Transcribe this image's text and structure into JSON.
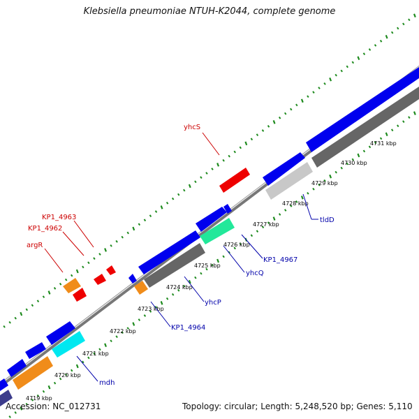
{
  "title": "Klebsiella pneumoniae NTUH-K2044, complete genome",
  "accession_text": "Accession: NC_012731",
  "summary_text": "Topology: circular; Length: 5,248,520 bp; Genes: 5,110",
  "colors": {
    "background": "#ffffff",
    "backbone": "#777777",
    "tick_dots": "#1d8a1d",
    "label_red": "#cc0000",
    "label_blue": "#0000aa",
    "gene_blue": "#0000ee",
    "gene_gray": "#666666",
    "gene_lightgray": "#c8c8c8",
    "gene_red": "#ee0000",
    "gene_orange": "#f08c1a",
    "gene_cyan": "#00e8f0",
    "gene_teal": "#22e89a",
    "gene_navy": "#3c3c8c"
  },
  "scale_ticks": [
    "4719 kbp",
    "4720 kbp",
    "4721 kbp",
    "4722 kbp",
    "4723 kbp",
    "4724 kbp",
    "4725 kbp",
    "4726 kbp",
    "4727 kbp",
    "4728 kbp",
    "4729 kbp",
    "4730 kbp",
    "4731 kbp"
  ],
  "gene_labels": {
    "top_strand": [
      "yhcS",
      "KP1_4963",
      "KP1_4962",
      "argR"
    ],
    "bottom_strand": [
      "tldD",
      "KP1_4967",
      "yhcQ",
      "yhcP",
      "KP1_4964",
      "mdh"
    ]
  }
}
